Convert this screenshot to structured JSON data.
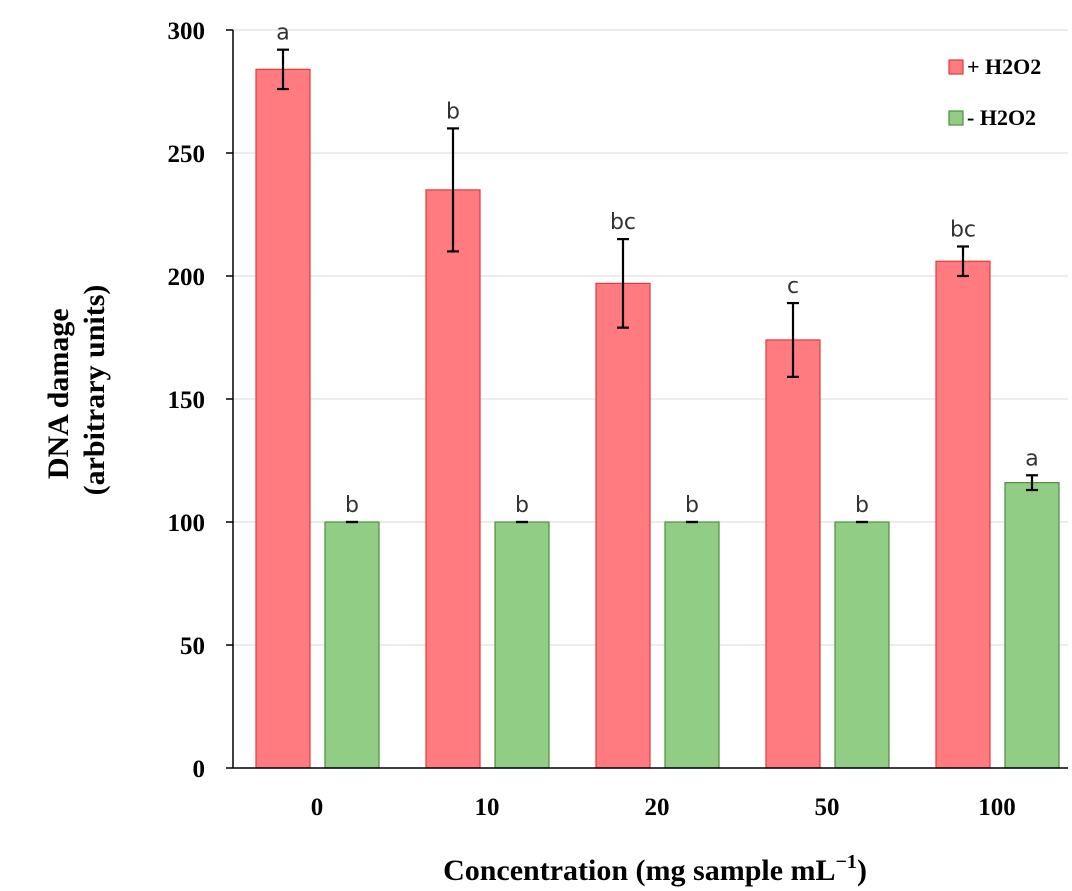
{
  "chart_data": {
    "type": "bar",
    "categories": [
      "0",
      "10",
      "20",
      "50",
      "100"
    ],
    "series": [
      {
        "name": "+ H2O2",
        "color": "#ff7b80",
        "stroke": "#e03a3a",
        "values": [
          284,
          235,
          197,
          174,
          206
        ],
        "errors": [
          8,
          25,
          18,
          15,
          6
        ],
        "labels": [
          "a",
          "b",
          "bc",
          "c",
          "bc"
        ]
      },
      {
        "name": "- H2O2",
        "color": "#92cd86",
        "stroke": "#4e8f3a",
        "values": [
          100,
          100,
          100,
          100,
          116
        ],
        "errors": [
          0,
          0,
          0,
          0,
          3
        ],
        "labels": [
          "b",
          "b",
          "b",
          "b",
          "a"
        ]
      }
    ],
    "ylabel_line1": "DNA damage",
    "ylabel_line2": "(arbitrary units)",
    "xlabel": "Concentration (mg sample mL",
    "xlabel_sup": "−1",
    "xlabel_end": ")",
    "ylim": [
      0,
      300
    ],
    "yticks": [
      "0",
      "50",
      "100",
      "150",
      "200",
      "250",
      "300"
    ],
    "grid": true,
    "legend_position": "top-right"
  }
}
